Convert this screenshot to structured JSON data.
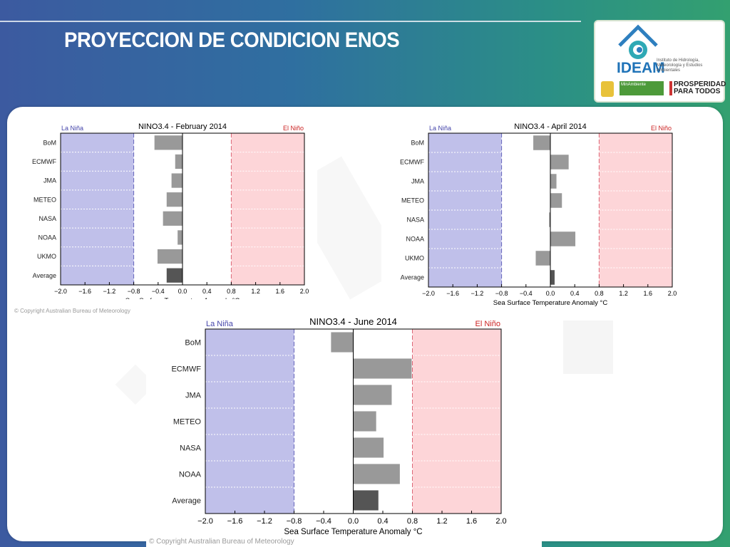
{
  "header": {
    "title": "PROYECCION DE CONDICION ENOS"
  },
  "logo": {
    "name": "IDEAM",
    "subtitle": "Instituto de Hidrología, Meteorología y Estudios Ambientales",
    "ministry": "MinAmbiente",
    "slogan": "PROSPERIDAD PARA TODOS"
  },
  "copyright": "© Copyright Australian Bureau of Meteorology",
  "colors": {
    "la_nina_fill": "#c0c0ea",
    "el_nino_fill": "#fdd5d8",
    "la_nina_text": "#4444aa",
    "el_nino_text": "#cc2222",
    "bar": "#999999",
    "avg_bar": "#555555"
  },
  "chart_data": [
    {
      "type": "bar",
      "title": "NINO3.4 - February 2014",
      "left_label": "La Niña",
      "right_label": "El Niño",
      "xlabel": "Sea Surface Temperature Anomaly °C",
      "xlim": [
        -2.0,
        2.0
      ],
      "xticks": [
        "−2.0",
        "−1.6",
        "−1.2",
        "−0.8",
        "−0.4",
        "0.0",
        "0.4",
        "0.8",
        "1.2",
        "1.6",
        "2.0"
      ],
      "thresholds": [
        -0.8,
        0.8
      ],
      "categories": [
        "BoM",
        "ECMWF",
        "JMA",
        "METEO",
        "NASA",
        "NOAA",
        "UKMO",
        "Average"
      ],
      "values": [
        -0.46,
        -0.12,
        -0.18,
        -0.26,
        -0.32,
        -0.08,
        -0.41,
        -0.26
      ]
    },
    {
      "type": "bar",
      "title": "NINO3.4 - April 2014",
      "left_label": "La Niña",
      "right_label": "El Niño",
      "xlabel": "Sea Surface Temperature Anomaly °C",
      "xlim": [
        -2.0,
        2.0
      ],
      "xticks": [
        "−2.0",
        "−1.6",
        "−1.2",
        "−0.8",
        "−0.4",
        "0.0",
        "0.4",
        "0.8",
        "1.2",
        "1.6",
        "2.0"
      ],
      "thresholds": [
        -0.8,
        0.8
      ],
      "categories": [
        "BoM",
        "ECMWF",
        "JMA",
        "METEO",
        "NASA",
        "NOAA",
        "UKMO",
        "Average"
      ],
      "values": [
        -0.28,
        0.3,
        0.1,
        0.19,
        -0.02,
        0.41,
        -0.24,
        0.07
      ]
    },
    {
      "type": "bar",
      "title": "NINO3.4 - June 2014",
      "left_label": "La Niña",
      "right_label": "El Niño",
      "xlabel": "Sea Surface Temperature Anomaly °C",
      "xlim": [
        -2.0,
        2.0
      ],
      "xticks": [
        "−2.0",
        "−1.6",
        "−1.2",
        "−0.8",
        "−0.4",
        "0.0",
        "0.4",
        "0.8",
        "1.2",
        "1.6",
        "2.0"
      ],
      "thresholds": [
        -0.8,
        0.8
      ],
      "categories": [
        "BoM",
        "ECMWF",
        "JMA",
        "METEO",
        "NASA",
        "NOAA",
        "Average"
      ],
      "values": [
        -0.3,
        0.79,
        0.52,
        0.31,
        0.41,
        0.63,
        0.34
      ]
    }
  ]
}
